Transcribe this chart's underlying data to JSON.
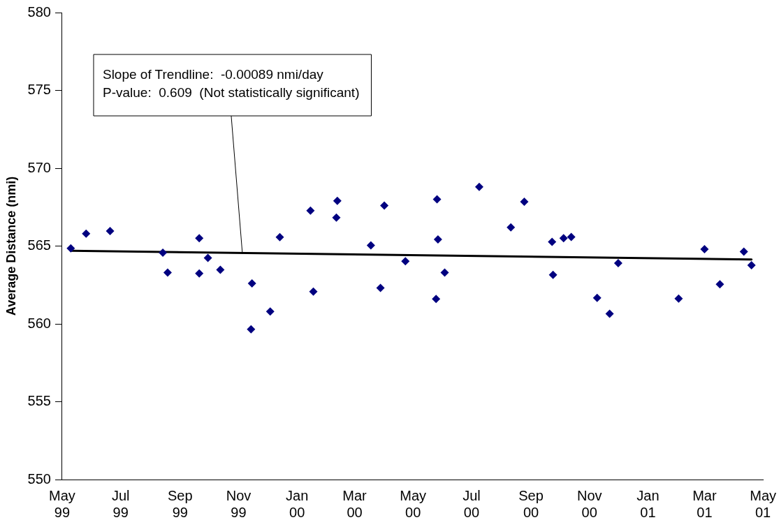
{
  "chart_data": {
    "type": "scatter",
    "ylabel": "Average Distance (nmi)",
    "xlim": [
      "1999-05-01",
      "2001-05-01"
    ],
    "xticks": [
      {
        "value": "1999-05-01",
        "label": "May 99"
      },
      {
        "value": "1999-07-01",
        "label": "Jul 99"
      },
      {
        "value": "1999-09-01",
        "label": "Sep 99"
      },
      {
        "value": "1999-11-01",
        "label": "Nov 99"
      },
      {
        "value": "2000-01-01",
        "label": "Jan 00"
      },
      {
        "value": "2000-03-01",
        "label": "Mar 00"
      },
      {
        "value": "2000-05-01",
        "label": "May 00"
      },
      {
        "value": "2000-07-01",
        "label": "Jul 00"
      },
      {
        "value": "2000-09-01",
        "label": "Sep 00"
      },
      {
        "value": "2000-11-01",
        "label": "Nov 00"
      },
      {
        "value": "2001-01-01",
        "label": "Jan 01"
      },
      {
        "value": "2001-03-01",
        "label": "Mar 01"
      },
      {
        "value": "2001-05-01",
        "label": "May 01"
      }
    ],
    "ylim": [
      550,
      580
    ],
    "yticks": [
      550,
      555,
      560,
      565,
      570,
      575,
      580
    ],
    "grid": false,
    "legend": false,
    "series": [
      {
        "marker": "diamond",
        "color": "#000080",
        "x": [
          "1999-05-10",
          "1999-05-26",
          "1999-06-20",
          "1999-08-14",
          "1999-08-19",
          "1999-09-21",
          "1999-09-21",
          "1999-09-30",
          "1999-10-13",
          "1999-11-14",
          "1999-11-15",
          "1999-12-04",
          "1999-12-14",
          "2000-01-15",
          "2000-01-18",
          "2000-02-11",
          "2000-02-12",
          "2000-03-18",
          "2000-03-28",
          "2000-04-01",
          "2000-04-23",
          "2000-05-25",
          "2000-05-26",
          "2000-05-27",
          "2000-06-03",
          "2000-07-09",
          "2000-08-11",
          "2000-08-25",
          "2000-09-23",
          "2000-09-24",
          "2000-10-05",
          "2000-10-13",
          "2000-11-09",
          "2000-11-22",
          "2000-12-01",
          "2001-02-02",
          "2001-03-01",
          "2001-03-17",
          "2001-04-11",
          "2001-04-19"
        ],
        "values": [
          564.85,
          565.8,
          565.96,
          564.57,
          563.3,
          565.5,
          563.24,
          564.24,
          563.47,
          559.65,
          562.6,
          560.8,
          565.57,
          567.28,
          562.07,
          566.83,
          567.9,
          565.04,
          562.31,
          567.6,
          564.02,
          561.6,
          568.0,
          565.43,
          563.3,
          568.8,
          566.2,
          567.85,
          565.27,
          563.15,
          565.5,
          565.58,
          561.67,
          560.65,
          563.9,
          561.62,
          564.8,
          562.54,
          564.64,
          563.77
        ]
      },
      {
        "type": "line",
        "marker": "none",
        "color": "#000000",
        "x": [
          "1999-05-10",
          "2001-04-19"
        ],
        "values": [
          564.7,
          564.14
        ]
      }
    ],
    "annotations": [
      {
        "text": "Slope of Trendline:  -0.00089 nmi/day\nP-value:  0.609  (Not statistically significant)",
        "x": "1999-11-05",
        "y": 564.5
      }
    ]
  }
}
